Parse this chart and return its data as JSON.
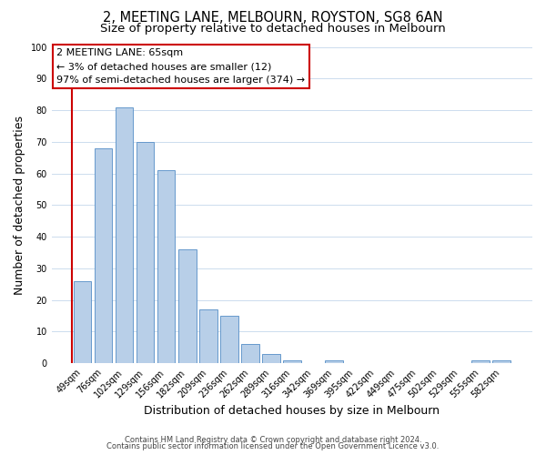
{
  "title": "2, MEETING LANE, MELBOURN, ROYSTON, SG8 6AN",
  "subtitle": "Size of property relative to detached houses in Melbourn",
  "xlabel": "Distribution of detached houses by size in Melbourn",
  "ylabel": "Number of detached properties",
  "bar_labels": [
    "49sqm",
    "76sqm",
    "102sqm",
    "129sqm",
    "156sqm",
    "182sqm",
    "209sqm",
    "236sqm",
    "262sqm",
    "289sqm",
    "316sqm",
    "342sqm",
    "369sqm",
    "395sqm",
    "422sqm",
    "449sqm",
    "475sqm",
    "502sqm",
    "529sqm",
    "555sqm",
    "582sqm"
  ],
  "bar_values": [
    26,
    68,
    81,
    70,
    61,
    36,
    17,
    15,
    6,
    3,
    1,
    0,
    1,
    0,
    0,
    0,
    0,
    0,
    0,
    1,
    1
  ],
  "bar_color": "#b8cfe8",
  "bar_edge_color": "#6699cc",
  "ylim": [
    0,
    100
  ],
  "annotation_line1": "2 MEETING LANE: 65sqm",
  "annotation_line2": "← 3% of detached houses are smaller (12)",
  "annotation_line3": "97% of semi-detached houses are larger (374) →",
  "property_line_color": "#cc0000",
  "property_line_x": -0.5,
  "footer_line1": "Contains HM Land Registry data © Crown copyright and database right 2024.",
  "footer_line2": "Contains public sector information licensed under the Open Government Licence v3.0.",
  "background_color": "#ffffff",
  "grid_color": "#ccdcee",
  "title_fontsize": 10.5,
  "subtitle_fontsize": 9.5,
  "axis_label_fontsize": 9,
  "tick_fontsize": 7,
  "annotation_fontsize": 8,
  "footer_fontsize": 6
}
